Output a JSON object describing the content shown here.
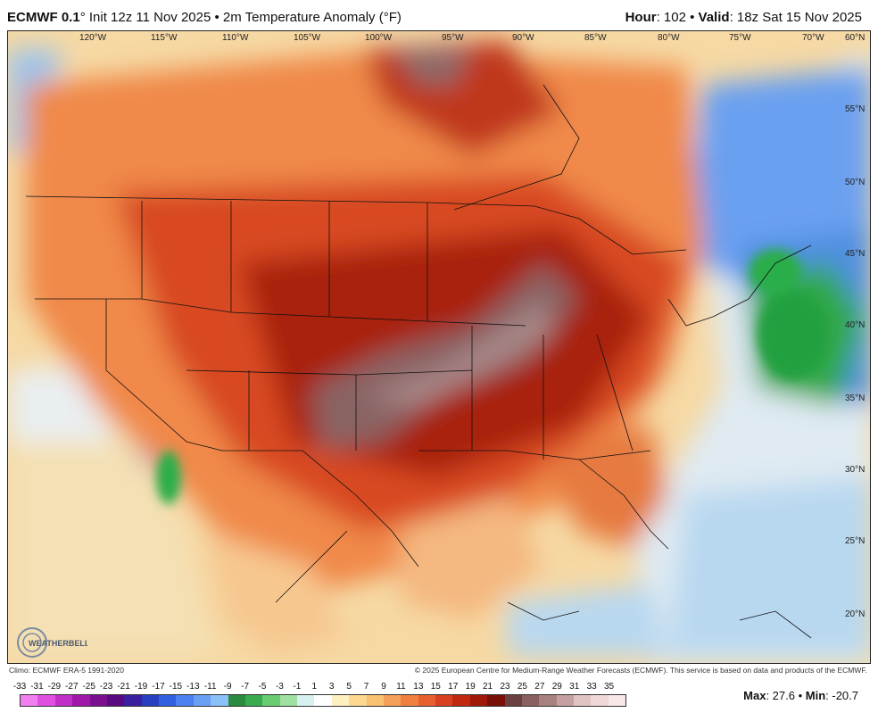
{
  "header": {
    "model": "ECMWF 0.1",
    "degree": "°",
    "init": " Init 12z 11 Nov 2025 • 2m Temperature Anomaly (°F)",
    "hour_label": "Hour",
    "hour_value": ": 102 • ",
    "valid_label": "Valid",
    "valid_value": ": 18z Sat 15 Nov 2025"
  },
  "map": {
    "lon_labels": [
      "120°W",
      "115°W",
      "110°W",
      "105°W",
      "100°W",
      "95°W",
      "90°W",
      "85°W",
      "80°W",
      "75°W",
      "70°W"
    ],
    "lat_labels": [
      "60°N",
      "55°N",
      "50°N",
      "45°N",
      "40°N",
      "35°N",
      "30°N",
      "25°N",
      "20°N"
    ],
    "colors": {
      "warm_strong": "#b02a10",
      "warm_mid": "#e0582a",
      "warm_light": "#f4a26a",
      "warm_pale": "#f9d9a0",
      "extreme": "#8a6a6a",
      "cool_light": "#b8d8f0",
      "cool": "#4f8fe0",
      "cold": "#2aa84a",
      "ocean_neutral": "#e8f0f4"
    }
  },
  "footer": {
    "climo": "Climo: ECMWF ERA-5 1991-2020",
    "copyright": "© 2025 European Centre for Medium-Range Weather Forecasts (ECMWF). This service is based on data and products of the ECMWF.",
    "logo_text": "WEATHERBELL",
    "max_label": "Max",
    "max_value": ": 27.6 • ",
    "min_label": "Min",
    "min_value": ": -20.7"
  },
  "scale": {
    "labels": [
      "-33",
      "-31",
      "-29",
      "-27",
      "-25",
      "-23",
      "-21",
      "-19",
      "-17",
      "-15",
      "-13",
      "-11",
      "-9",
      "-7",
      "-5",
      "-3",
      "-1",
      "1",
      "3",
      "5",
      "7",
      "9",
      "11",
      "13",
      "15",
      "17",
      "19",
      "21",
      "23",
      "25",
      "27",
      "29",
      "31",
      "33",
      "35"
    ],
    "colors": [
      "#f27ff0",
      "#e050e0",
      "#c030c8",
      "#a018a8",
      "#7a1090",
      "#5a0a80",
      "#3a20a0",
      "#2840c0",
      "#3060e0",
      "#4a80f0",
      "#6aa0f4",
      "#8cc0f8",
      "#2a8a40",
      "#3aaa50",
      "#6acc70",
      "#a0e0a0",
      "#d8f0f0",
      "#ffffff",
      "#fff0c0",
      "#fcd890",
      "#f8c070",
      "#f4a058",
      "#f08040",
      "#e86030",
      "#d84020",
      "#c02810",
      "#a01808",
      "#781008",
      "#6a4040",
      "#8a6060",
      "#a88080",
      "#c4a0a0",
      "#e0c4c4",
      "#f0d8d8",
      "#f8e8e8"
    ]
  }
}
